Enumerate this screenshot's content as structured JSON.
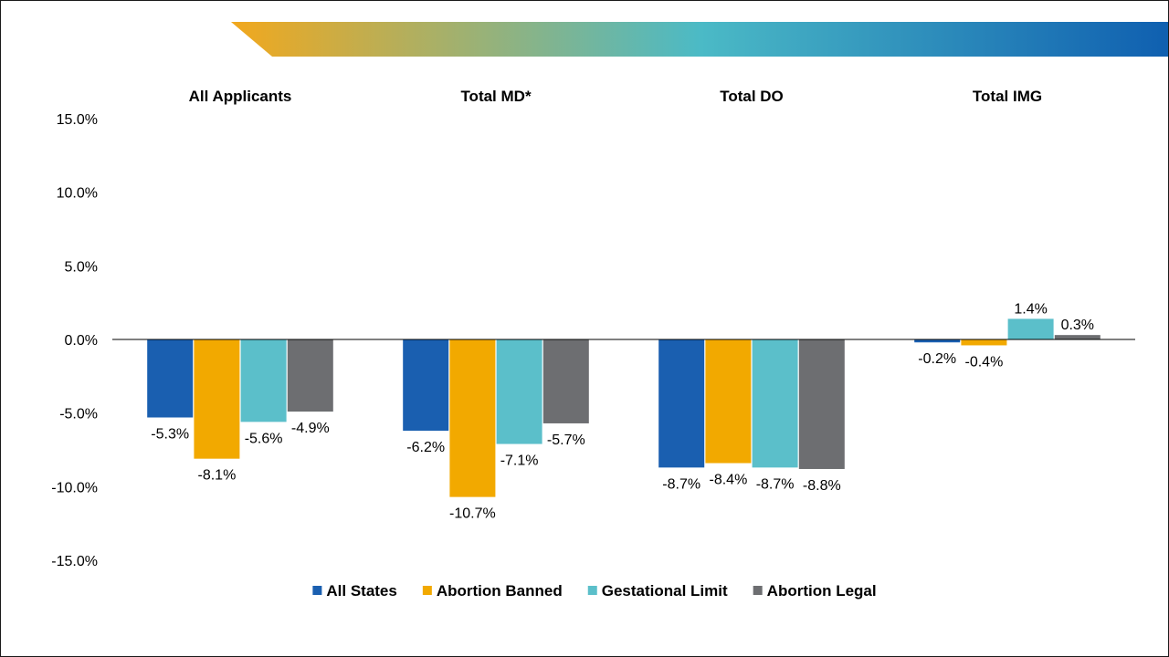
{
  "colors": {
    "banner_start": "#f2a81d",
    "banner_mid": "#4bbac6",
    "banner_end": "#0f5fb0",
    "axis": "#000000"
  },
  "chart_data": {
    "type": "bar",
    "categories": [
      "All Applicants",
      "Total MD*",
      "Total DO",
      "Total IMG"
    ],
    "series": [
      {
        "name": "All States",
        "color": "#1a5fb0",
        "values": [
          -5.3,
          -6.2,
          -8.7,
          -0.2
        ]
      },
      {
        "name": "Abortion Banned",
        "color": "#f2a900",
        "values": [
          -8.1,
          -10.7,
          -8.4,
          -0.4
        ]
      },
      {
        "name": "Gestational Limit",
        "color": "#5bbfca",
        "values": [
          -5.6,
          -7.1,
          -8.7,
          1.4
        ]
      },
      {
        "name": "Abortion Legal",
        "color": "#6d6e71",
        "values": [
          -4.9,
          -5.7,
          -8.8,
          0.3
        ]
      }
    ],
    "ylim": [
      -15,
      15
    ],
    "yticks": [
      15,
      10,
      5,
      0,
      -5,
      -10,
      -15
    ],
    "tick_labels": [
      "15.0%",
      "10.0%",
      "5.0%",
      "0.0%",
      "-5.0%",
      "-10.0%",
      "-15.0%"
    ],
    "data_labels": [
      [
        "-5.3%",
        "-6.2%",
        "-8.7%",
        "-0.2%"
      ],
      [
        "-8.1%",
        "-10.7%",
        "-8.4%",
        "-0.4%"
      ],
      [
        "-5.6%",
        "-7.1%",
        "-8.7%",
        "1.4%"
      ],
      [
        "-4.9%",
        "-5.7%",
        "-8.8%",
        "0.3%"
      ]
    ],
    "grid": false,
    "legend_position": "bottom",
    "title": "",
    "xlabel": "",
    "ylabel": ""
  }
}
